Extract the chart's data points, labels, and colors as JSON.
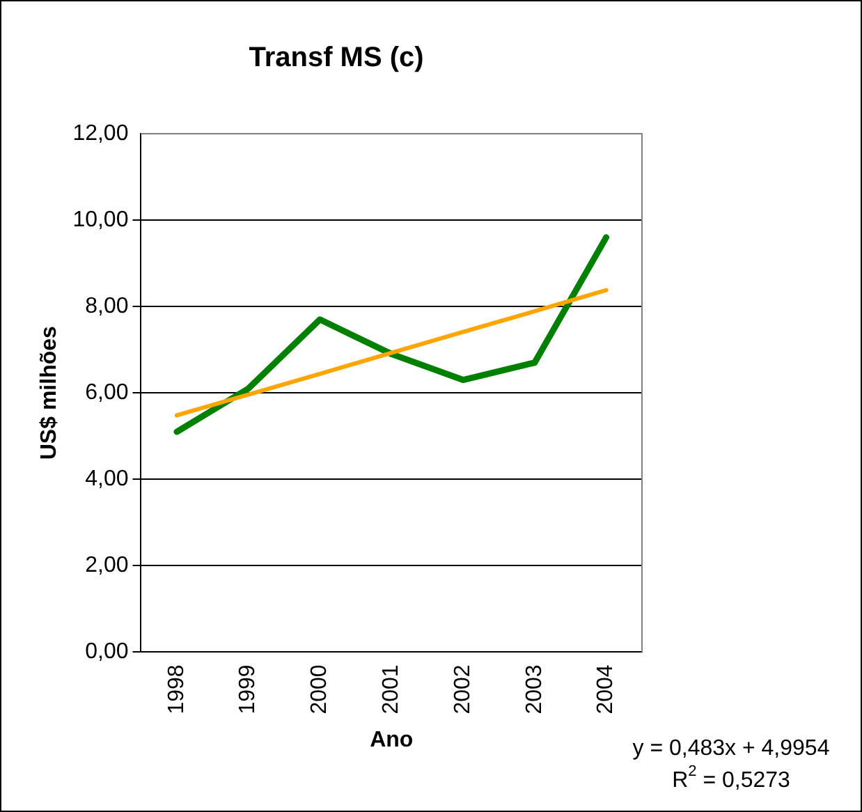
{
  "chart_data": {
    "type": "line",
    "title": "Transf MS (c)",
    "xlabel": "Ano",
    "ylabel": "US$ milhões",
    "categories": [
      "1998",
      "1999",
      "2000",
      "2001",
      "2002",
      "2003",
      "2004"
    ],
    "series": [
      {
        "color": "#008000",
        "values": [
          5.1,
          6.1,
          7.7,
          6.9,
          6.3,
          6.7,
          9.6
        ]
      },
      {
        "type": "line",
        "color": "#ffa500",
        "values": [
          5.48,
          5.96,
          6.44,
          6.93,
          7.41,
          7.89,
          8.38
        ]
      }
    ],
    "ylim": [
      0,
      12
    ],
    "yticks": [
      {
        "value": 0,
        "label": "0,00"
      },
      {
        "value": 2,
        "label": "2,00"
      },
      {
        "value": 4,
        "label": "4,00"
      },
      {
        "value": 6,
        "label": "6,00"
      },
      {
        "value": 8,
        "label": "8,00"
      },
      {
        "value": 10,
        "label": "10,00"
      },
      {
        "value": 12,
        "label": "12,00"
      }
    ],
    "grid": "y",
    "legend": false,
    "marker": "none",
    "line_style": "solid",
    "annotations": [
      "y = 0,483x + 4,9954",
      "R$^{2}$ = 0,5273"
    ]
  }
}
